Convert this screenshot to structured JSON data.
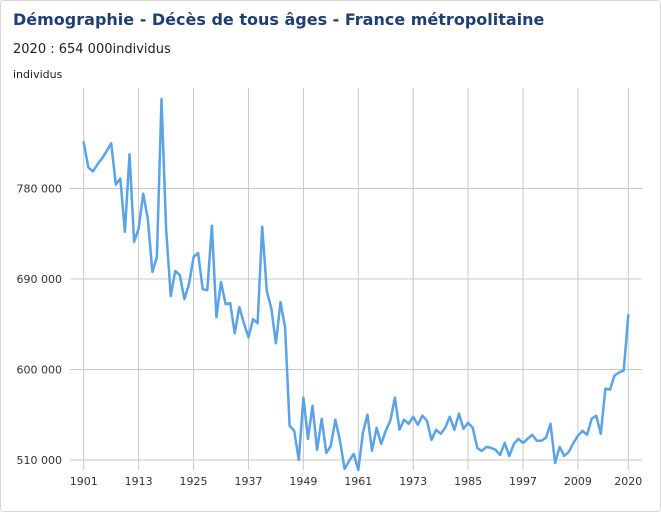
{
  "title": "Démographie - Décès de tous âges - France métropolitaine",
  "subtitle": "2020 : 654 000individus",
  "chart_data": {
    "type": "line",
    "ylabel": "individus",
    "ylim": [
      500000,
      880000
    ],
    "xlim": [
      1898,
      2023
    ],
    "yticks": [
      510000,
      600000,
      690000,
      780000
    ],
    "ytick_labels": [
      "510 000",
      "600 000",
      "690 000",
      "780 000"
    ],
    "xticks": [
      1901,
      1913,
      1925,
      1937,
      1949,
      1961,
      1973,
      1985,
      1997,
      2009,
      2020
    ],
    "xtick_labels": [
      "1901",
      "1913",
      "1925",
      "1937",
      "1949",
      "1961",
      "1973",
      "1985",
      "1997",
      "2009",
      "2020"
    ],
    "grid": true,
    "line_color": "#5aa3e6",
    "series": [
      {
        "x": [
          1901,
          1902,
          1903,
          1904,
          1905,
          1906,
          1907,
          1908,
          1909,
          1910,
          1911,
          1912,
          1913,
          1914,
          1915,
          1916,
          1917,
          1918,
          1919,
          1920,
          1921,
          1922,
          1923,
          1924,
          1925,
          1926,
          1927,
          1928,
          1929,
          1930,
          1931,
          1932,
          1933,
          1934,
          1935,
          1936,
          1937,
          1938,
          1939,
          1940,
          1941,
          1942,
          1943,
          1944,
          1945,
          1946,
          1947,
          1948,
          1949,
          1950,
          1951,
          1952,
          1953,
          1954,
          1955,
          1956,
          1957,
          1958,
          1959,
          1960,
          1961,
          1962,
          1963,
          1964,
          1965,
          1966,
          1967,
          1968,
          1969,
          1970,
          1971,
          1972,
          1973,
          1974,
          1975,
          1976,
          1977,
          1978,
          1979,
          1980,
          1981,
          1982,
          1983,
          1984,
          1985,
          1986,
          1987,
          1988,
          1989,
          1990,
          1991,
          1992,
          1993,
          1994,
          1995,
          1996,
          1997,
          1998,
          1999,
          2000,
          2001,
          2002,
          2003,
          2004,
          2005,
          2006,
          2007,
          2008,
          2009,
          2010,
          2011,
          2012,
          2013,
          2014,
          2015,
          2016,
          2017,
          2018,
          2019,
          2020
        ],
        "values": [
          826000,
          801000,
          797000,
          804000,
          810000,
          817000,
          825000,
          784000,
          790000,
          737000,
          814000,
          727000,
          740000,
          775000,
          750000,
          697000,
          712000,
          869000,
          740000,
          673000,
          698000,
          694000,
          670000,
          685000,
          712000,
          716000,
          680000,
          679000,
          743000,
          652000,
          687000,
          665000,
          666000,
          636000,
          662000,
          646000,
          632000,
          650000,
          646000,
          742000,
          678000,
          661000,
          626000,
          667000,
          642000,
          544000,
          539000,
          510000,
          572000,
          531000,
          564000,
          520000,
          551000,
          517000,
          524000,
          550000,
          529000,
          501000,
          509000,
          516000,
          500000,
          537000,
          555000,
          519000,
          542000,
          526000,
          539000,
          549000,
          572000,
          540000,
          550000,
          546000,
          553000,
          545000,
          554000,
          549000,
          530000,
          540000,
          536000,
          542000,
          553000,
          540000,
          556000,
          541000,
          547000,
          542000,
          522000,
          519000,
          523000,
          522000,
          520000,
          515000,
          527000,
          514000,
          526000,
          531000,
          527000,
          531000,
          535000,
          529000,
          529000,
          532000,
          546000,
          507000,
          523000,
          514000,
          518000,
          527000,
          534000,
          539000,
          535000,
          551000,
          554000,
          536000,
          581000,
          580000,
          594000,
          597000,
          599000,
          654000
        ]
      }
    ]
  }
}
